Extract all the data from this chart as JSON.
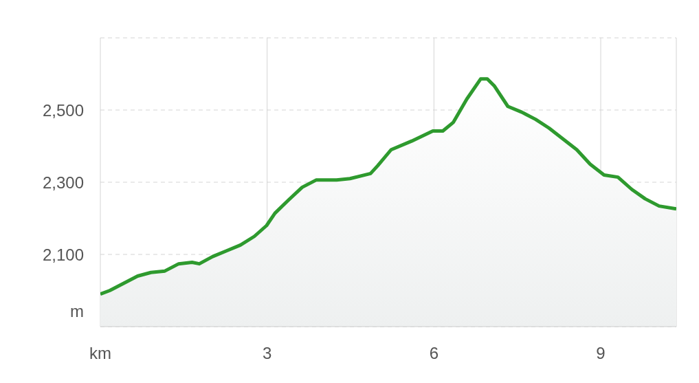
{
  "chart_data": {
    "type": "area",
    "xlabel": null,
    "ylabel": "m",
    "x": [
      0,
      0.17,
      0.42,
      0.67,
      0.91,
      1.16,
      1.41,
      1.65,
      1.78,
      2.02,
      2.27,
      2.52,
      2.77,
      2.99,
      3.14,
      3.38,
      3.63,
      3.88,
      4.25,
      4.49,
      4.86,
      4.99,
      5.23,
      5.6,
      5.98,
      6.16,
      6.35,
      6.59,
      6.84,
      6.96,
      7.09,
      7.33,
      7.58,
      7.83,
      8.07,
      8.32,
      8.57,
      8.81,
      9.06,
      9.31,
      9.56,
      9.8,
      10.05,
      10.36
    ],
    "series": [
      {
        "color": "#2e9a2e",
        "values": [
          1990,
          2000,
          2020,
          2040,
          2050,
          2054,
          2074,
          2078,
          2074,
          2094,
          2110,
          2126,
          2150,
          2180,
          2214,
          2250,
          2286,
          2306,
          2306,
          2310,
          2324,
          2346,
          2390,
          2414,
          2442,
          2442,
          2466,
          2530,
          2586,
          2586,
          2566,
          2510,
          2494,
          2474,
          2450,
          2420,
          2390,
          2350,
          2320,
          2314,
          2280,
          2254,
          2234,
          2226
        ]
      }
    ],
    "xlim": [
      0,
      10.36
    ],
    "xticks": [
      {
        "value": 0,
        "label": "km"
      },
      3,
      6,
      9
    ],
    "ylim": [
      1900,
      2700
    ],
    "yticks": [
      {
        "value": 2100,
        "label": "2,100"
      },
      {
        "value": 2300,
        "label": "2,300"
      },
      {
        "value": 2500,
        "label": "2,500"
      }
    ],
    "grid": true,
    "marker": "none",
    "line_style": "solid"
  }
}
